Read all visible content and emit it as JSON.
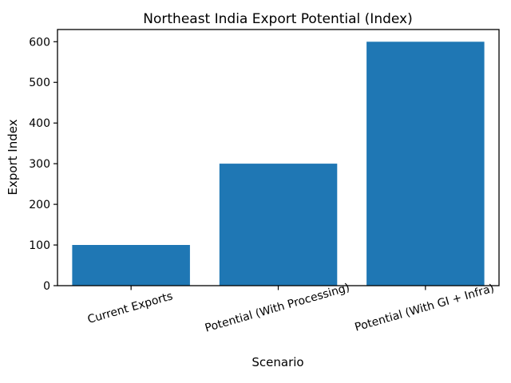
{
  "figure": {
    "background_color": "#ffffff"
  },
  "chart_data": {
    "type": "bar",
    "title": "Northeast India Export Potential (Index)",
    "xlabel": "Scenario",
    "ylabel": "Export Index",
    "categories": [
      "Current Exports",
      "Potential (With Processing)",
      "Potential (With GI + Infra)"
    ],
    "values": [
      100,
      300,
      600
    ],
    "yticks": [
      0,
      100,
      200,
      300,
      400,
      500,
      600
    ],
    "ylim": [
      0,
      630
    ],
    "bar_color": "#1f77b4",
    "axis_color": "#000000",
    "grid": false,
    "legend_position": "none",
    "xtick_rotation_deg": 16
  }
}
